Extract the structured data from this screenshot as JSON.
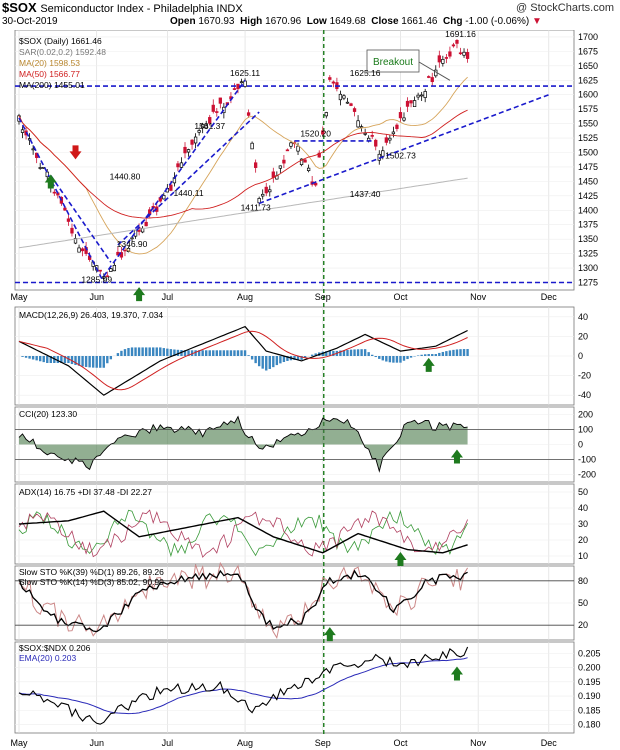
{
  "header": {
    "symbol": "$SOX",
    "name": "Semiconductor Index - Philadelphia INDX",
    "source": "@ StockCharts.com",
    "date": "30-Oct-2019",
    "ohlc_labels": {
      "open": "Open",
      "high": "High",
      "low": "Low",
      "close": "Close",
      "chg": "Chg"
    },
    "open": "1670.93",
    "high": "1670.96",
    "low": "1649.68",
    "close": "1661.46",
    "chg": "-1.00 (-0.06%)"
  },
  "colors": {
    "up": "#000000",
    "down": "#cc1133",
    "trend": "#1a1acc",
    "vline": "#1a7a1a",
    "arrow_green": "#1e7a1e",
    "arrow_red": "#d01818",
    "macd_hist": "#3a86c0",
    "ma20": "#d6a45a",
    "ma50": "#d02020",
    "ma200": "#b8b8b8",
    "cci_fill": "#4a7a4a",
    "cci_fill_neg": "#7a4a4a",
    "di_plus": "#3a9a3a",
    "di_minus": "#b04060"
  },
  "x_labels": [
    "May",
    "Jun",
    "Jul",
    "Aug",
    "Sep",
    "Oct",
    "Nov",
    "Dec"
  ],
  "price_panel": {
    "legend": [
      {
        "text": "$SOX (Daily) 1661.46",
        "color": "#000000"
      },
      {
        "text": "SAR(0.02,0.2) 1592.48",
        "color": "#777777"
      },
      {
        "text": "MA(20) 1598.53",
        "color": "#b8862e"
      },
      {
        "text": "MA(50) 1566.77",
        "color": "#d02020"
      },
      {
        "text": "MA(200) 1455.01",
        "color": "#000000"
      }
    ],
    "annotation": "Breakout",
    "price_labels": [
      "1691.16",
      "1625.11",
      "1625.16",
      "1531.37",
      "1520.20",
      "1502.73",
      "1440.80",
      "1440.11",
      "1437.40",
      "1411.73",
      "1346.90",
      "1285.99"
    ],
    "y_ticks": [
      "1700",
      "1675",
      "1650",
      "1625",
      "1600",
      "1575",
      "1550",
      "1525",
      "1500",
      "1475",
      "1450",
      "1425",
      "1400",
      "1375",
      "1350",
      "1325",
      "1300",
      "1275"
    ],
    "ylim": [
      1262,
      1712
    ]
  },
  "indicators": {
    "macd": {
      "legend": "MACD(12,26,9) 26.403, 19.370, 7.034",
      "ticks": [
        "40",
        "20",
        "0",
        "-20",
        "-40"
      ],
      "ylim": [
        -50,
        50
      ]
    },
    "cci": {
      "legend": "CCI(20) 123.30",
      "ticks": [
        "200",
        "100",
        "0",
        "-100",
        "-200"
      ],
      "ylim": [
        -250,
        250
      ]
    },
    "adx": {
      "legend": "ADX(14) 16.75 +DI 37.48 -DI 22.27",
      "ticks": [
        "50",
        "40",
        "30",
        "20",
        "10"
      ],
      "ylim": [
        5,
        55
      ]
    },
    "sto": {
      "legend1": "Slow STO %K(39) %D(1) 89.26, 89.26",
      "legend2": "Slow STO %K(14) %D(3) 85.02, 90.90",
      "ticks": [
        "80",
        "50",
        "20"
      ],
      "ylim": [
        0,
        100
      ]
    },
    "ratio": {
      "legend1": "$SOX:$NDX 0.206",
      "legend2": "EMA(20) 0.203",
      "ticks": [
        "0.205",
        "0.200",
        "0.195",
        "0.190",
        "0.185",
        "0.180"
      ],
      "ylim": [
        0.177,
        0.209
      ]
    }
  },
  "chart_data": {
    "type": "candlestick",
    "title": "$SOX Semiconductor Index - Philadelphia INDX",
    "x_labels": [
      "May",
      "Jun",
      "Jul",
      "Aug",
      "Sep",
      "Oct",
      "Nov",
      "Dec"
    ],
    "close_points": [
      {
        "date": "May",
        "value": 1555
      },
      {
        "date": "mid-May",
        "value": 1445
      },
      {
        "date": "late-May",
        "value": 1325
      },
      {
        "date": "Jun 3",
        "value": 1286
      },
      {
        "date": "late-Jun",
        "value": 1430
      },
      {
        "date": "Jul",
        "value": 1531
      },
      {
        "date": "late-Jul",
        "value": 1625
      },
      {
        "date": "early-Aug",
        "value": 1412
      },
      {
        "date": "mid-Aug",
        "value": 1520
      },
      {
        "date": "late-Aug",
        "value": 1437
      },
      {
        "date": "Sep",
        "value": 1625
      },
      {
        "date": "early-Oct",
        "value": 1503
      },
      {
        "date": "late-Oct",
        "value": 1691
      },
      {
        "date": "Oct 30",
        "value": 1661
      }
    ],
    "horizontal_lines": [
      1615,
      1275
    ],
    "ylim": [
      1262,
      1712
    ]
  }
}
